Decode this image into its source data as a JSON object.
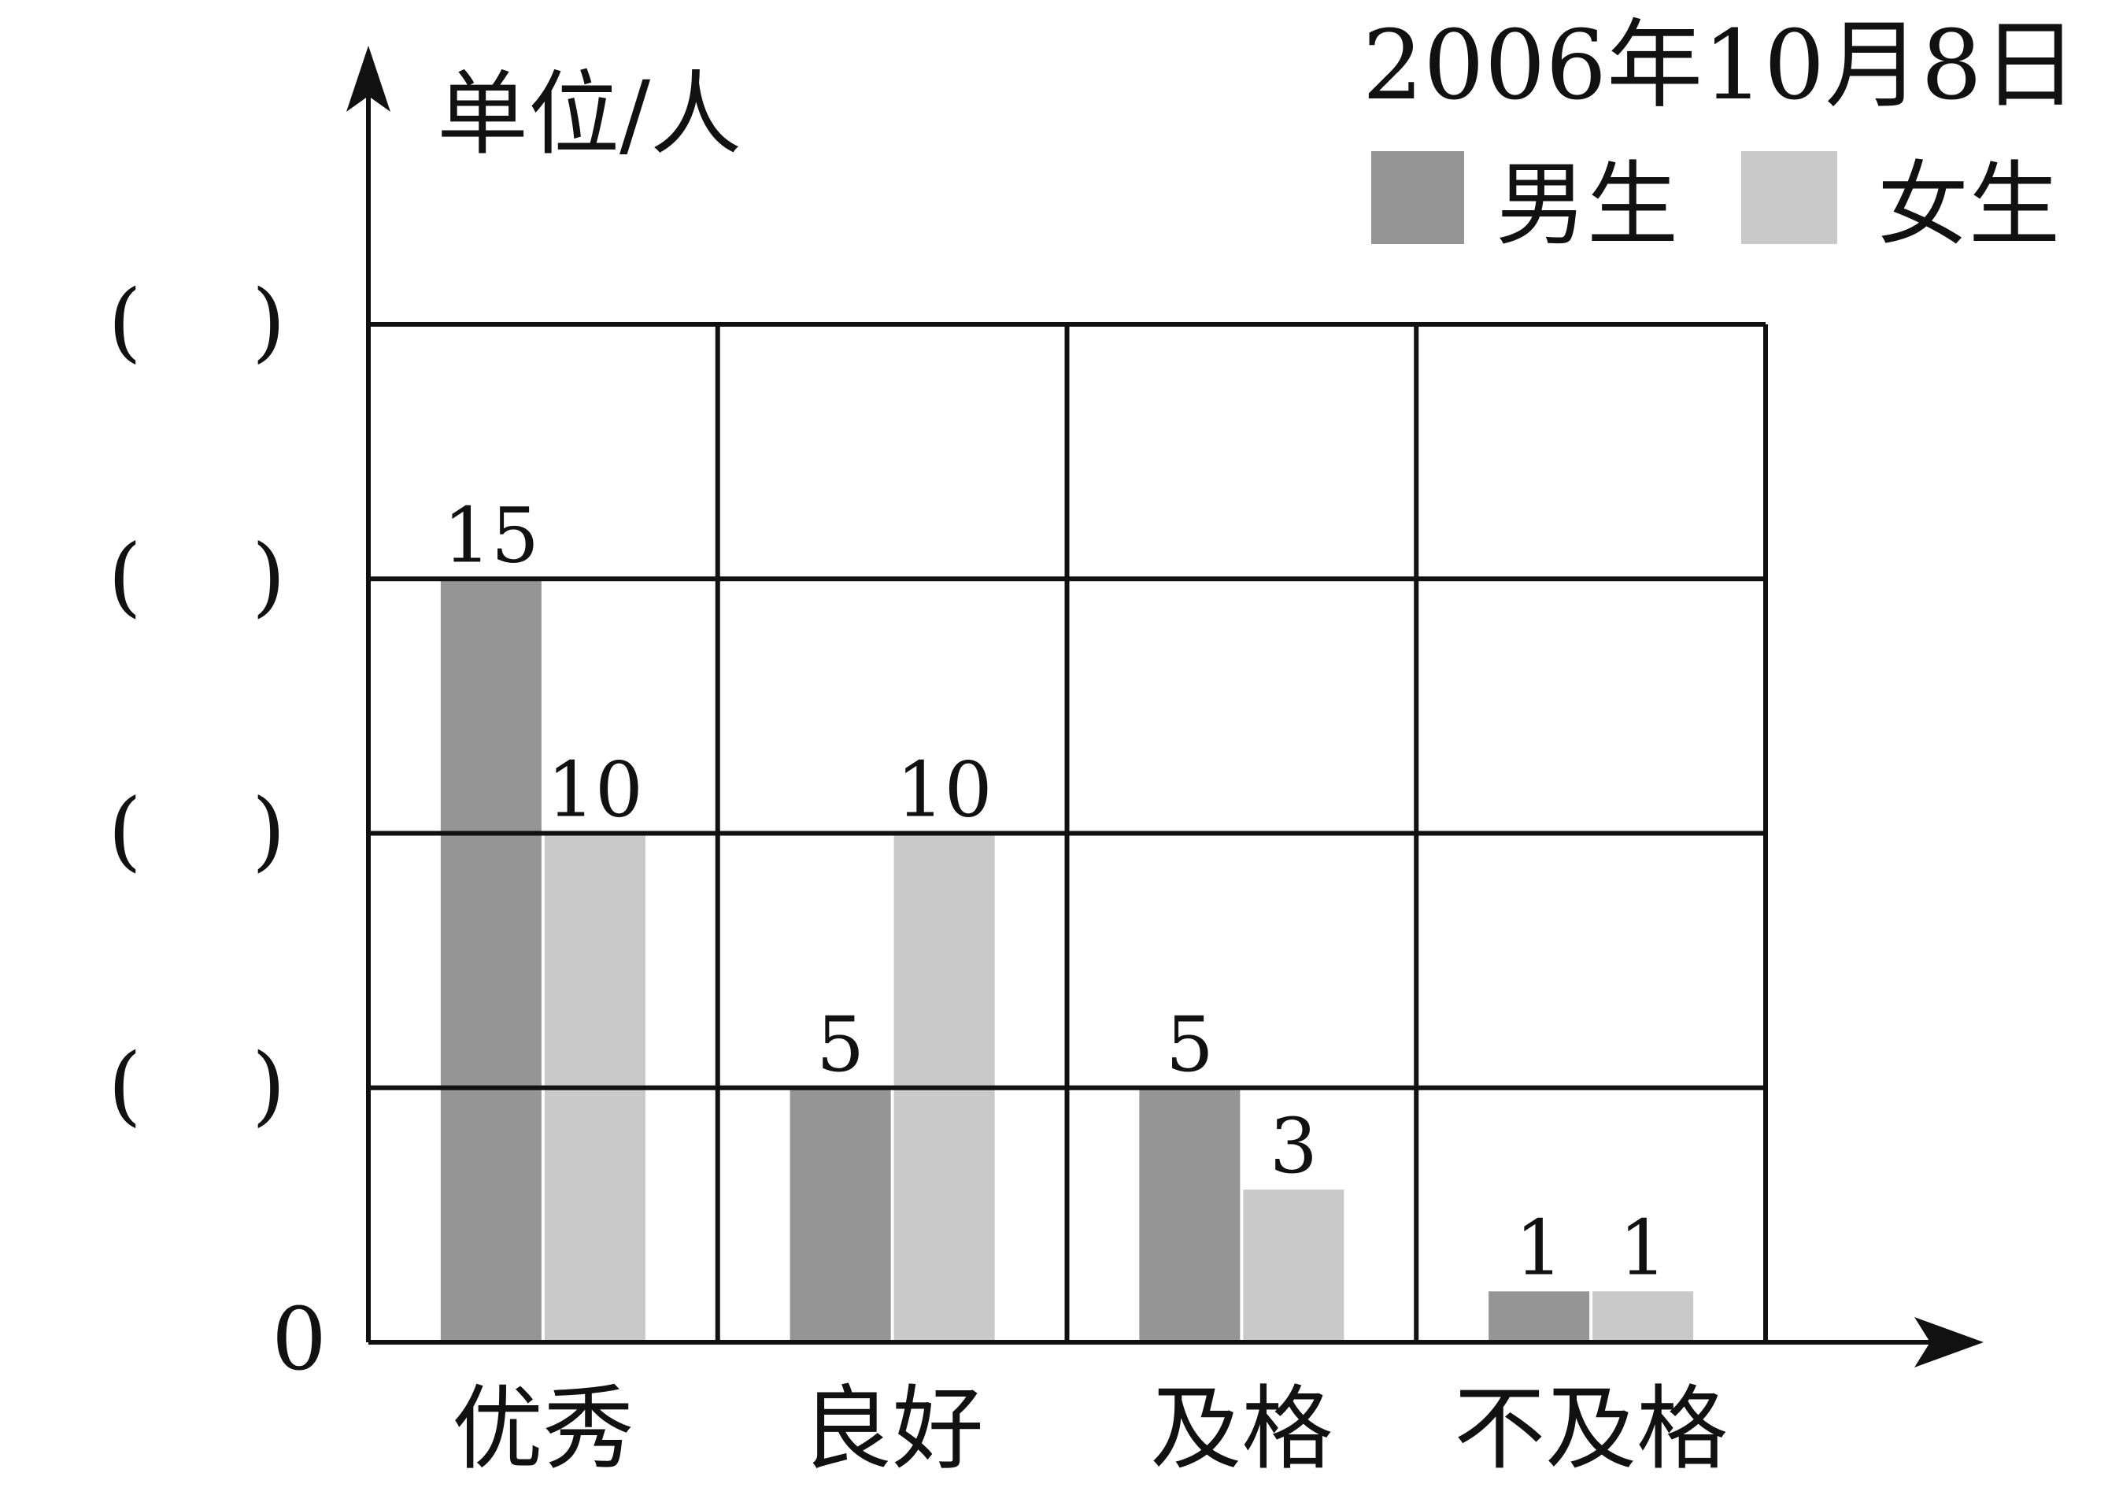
{
  "chart_data": {
    "type": "bar",
    "date": "2006年10月8日",
    "unit_label": "单位/人",
    "categories": [
      "优秀",
      "良好",
      "及格",
      "不及格"
    ],
    "series": [
      {
        "name": "男生",
        "values": [
          15,
          5,
          5,
          1
        ]
      },
      {
        "name": "女生",
        "values": [
          10,
          10,
          3,
          1
        ]
      }
    ],
    "data_labels": {
      "男生": [
        "15",
        "5",
        "5",
        "1"
      ],
      "女生": [
        "10",
        "10",
        "3",
        "1"
      ]
    },
    "y_tick_labels": [
      "0",
      "(    )",
      "(    )",
      "(    )",
      "(    )"
    ],
    "ylim": [
      0,
      20
    ],
    "grid": true,
    "legend_position": "top-right",
    "colors": {
      "男生": "#959595",
      "女生": "#c9c9c9",
      "axis": "#111111"
    }
  }
}
